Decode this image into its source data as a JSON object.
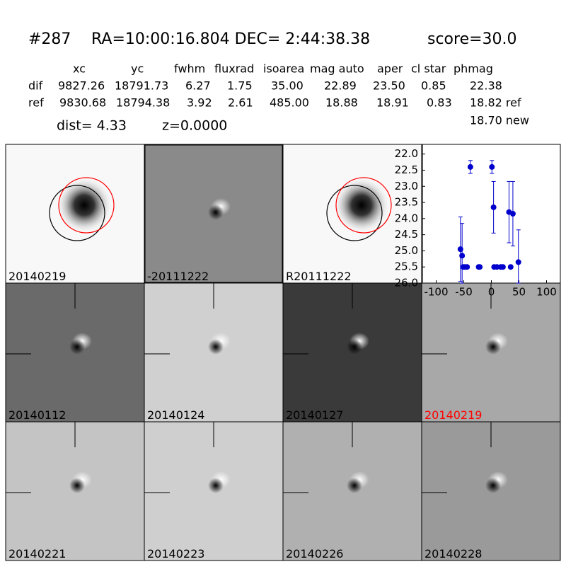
{
  "header": {
    "id": "#287",
    "coords": "RA=10:00:16.804 DEC= 2:44:38.38",
    "score": "score=30.0"
  },
  "table": {
    "columns": [
      "xc",
      "yc",
      "fwhm",
      "fluxrad",
      "isoarea",
      "mag auto",
      "aper",
      "cl star",
      "phmag"
    ],
    "rows": [
      [
        "dif",
        "9827.26",
        "18791.73",
        "6.27",
        "1.75",
        "35.00",
        "22.89",
        "23.50",
        "0.85",
        "22.38"
      ],
      [
        "ref",
        "9830.68",
        "18794.38",
        "3.92",
        "2.61",
        "485.00",
        "18.88",
        "18.91",
        "0.83",
        "18.82 ref"
      ]
    ],
    "extra": "18.70 new",
    "dist": "dist=  4.33",
    "z": "z=0.0000"
  },
  "stamps": [
    {
      "label": "20140219"
    },
    {
      "label": "-20111222"
    },
    {
      "label": "R20111222"
    },
    {
      "label": "20140112"
    },
    {
      "label": "20140124"
    },
    {
      "label": "20140127"
    },
    {
      "label": "20140219",
      "color": "#ff0000"
    },
    {
      "label": "20140221"
    },
    {
      "label": "20140223"
    },
    {
      "label": "20140226"
    },
    {
      "label": "20140228"
    }
  ],
  "chart_data": {
    "type": "errorbar",
    "color": "#0000cc",
    "x": [
      -56,
      -53,
      -51,
      -48,
      -44,
      -38,
      -23,
      -21,
      1,
      4,
      5,
      10,
      17,
      21,
      32,
      35,
      39,
      49
    ],
    "values": [
      24.95,
      25.15,
      25.5,
      25.5,
      25.5,
      22.4,
      25.5,
      25.5,
      22.4,
      23.65,
      25.5,
      25.5,
      25.5,
      25.5,
      23.8,
      25.5,
      23.85,
      25.35
    ],
    "errors": [
      1.0,
      1.0,
      0.05,
      0.05,
      0.05,
      0.2,
      0.05,
      0.05,
      0.2,
      0.8,
      0.05,
      0.05,
      0.05,
      0.05,
      0.95,
      0.05,
      1.0,
      1.0
    ],
    "xlim": [
      -125,
      125
    ],
    "ylim": [
      26.0,
      21.7
    ],
    "xticks": [
      -100,
      -50,
      0,
      50,
      100
    ],
    "yticks": [
      {
        "value": 22,
        "label": "22.0"
      },
      {
        "value": 22.5,
        "label": "22.5"
      },
      {
        "value": 23,
        "label": "23.0"
      },
      {
        "value": 23.5,
        "label": "23.5"
      },
      {
        "value": 24,
        "label": "24.0"
      },
      {
        "value": 24.5,
        "label": "24.5"
      },
      {
        "value": 25,
        "label": "25.0"
      },
      {
        "value": 25.5,
        "label": "25.5"
      },
      {
        "value": 26,
        "label": "26.0"
      }
    ]
  }
}
